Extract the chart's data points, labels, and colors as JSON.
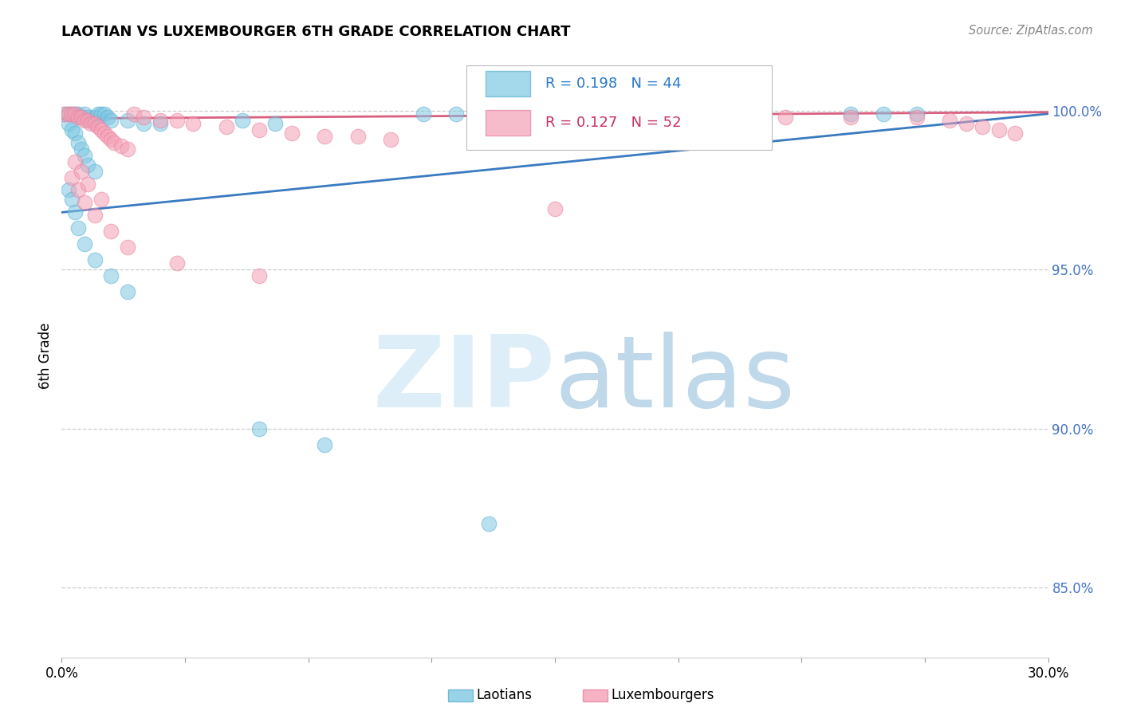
{
  "title": "LAOTIAN VS LUXEMBOURGER 6TH GRADE CORRELATION CHART",
  "source": "Source: ZipAtlas.com",
  "ylabel": "6th Grade",
  "ytick_labels": [
    "100.0%",
    "95.0%",
    "90.0%",
    "85.0%"
  ],
  "ytick_values": [
    1.0,
    0.95,
    0.9,
    0.85
  ],
  "xmin": 0.0,
  "xmax": 0.3,
  "ymin": 0.828,
  "ymax": 1.018,
  "legend_blue_r": "R = 0.198",
  "legend_blue_n": "N = 44",
  "legend_pink_r": "R = 0.127",
  "legend_pink_n": "N = 52",
  "blue_color": "#7ec8e3",
  "pink_color": "#f4a0b5",
  "blue_line_color": "#3a7abf",
  "pink_line_color": "#d95f7f",
  "watermark_color": "#ddeef8",
  "blue_scatter_edge": "#5aafd4",
  "pink_scatter_edge": "#e87fa0",
  "blue_points": [
    [
      0.001,
      0.999
    ],
    [
      0.002,
      0.999
    ],
    [
      0.003,
      0.999
    ],
    [
      0.004,
      0.999
    ],
    [
      0.005,
      0.999
    ],
    [
      0.006,
      0.998
    ],
    [
      0.007,
      0.999
    ],
    [
      0.008,
      0.998
    ],
    [
      0.009,
      0.997
    ],
    [
      0.01,
      0.998
    ],
    [
      0.011,
      0.999
    ],
    [
      0.012,
      0.999
    ],
    [
      0.013,
      0.999
    ],
    [
      0.014,
      0.998
    ],
    [
      0.015,
      0.997
    ],
    [
      0.02,
      0.997
    ],
    [
      0.025,
      0.996
    ],
    [
      0.03,
      0.996
    ],
    [
      0.055,
      0.997
    ],
    [
      0.065,
      0.996
    ],
    [
      0.11,
      0.999
    ],
    [
      0.12,
      0.999
    ],
    [
      0.24,
      0.999
    ],
    [
      0.25,
      0.999
    ],
    [
      0.26,
      0.999
    ],
    [
      0.002,
      0.996
    ],
    [
      0.003,
      0.994
    ],
    [
      0.004,
      0.993
    ],
    [
      0.005,
      0.99
    ],
    [
      0.006,
      0.988
    ],
    [
      0.007,
      0.986
    ],
    [
      0.008,
      0.983
    ],
    [
      0.01,
      0.981
    ],
    [
      0.002,
      0.975
    ],
    [
      0.003,
      0.972
    ],
    [
      0.004,
      0.968
    ],
    [
      0.005,
      0.963
    ],
    [
      0.007,
      0.958
    ],
    [
      0.01,
      0.953
    ],
    [
      0.015,
      0.948
    ],
    [
      0.02,
      0.943
    ],
    [
      0.06,
      0.9
    ],
    [
      0.08,
      0.895
    ],
    [
      0.13,
      0.87
    ]
  ],
  "pink_points": [
    [
      0.001,
      0.999
    ],
    [
      0.002,
      0.999
    ],
    [
      0.003,
      0.999
    ],
    [
      0.004,
      0.999
    ],
    [
      0.005,
      0.998
    ],
    [
      0.006,
      0.998
    ],
    [
      0.007,
      0.997
    ],
    [
      0.008,
      0.997
    ],
    [
      0.009,
      0.996
    ],
    [
      0.01,
      0.996
    ],
    [
      0.011,
      0.995
    ],
    [
      0.012,
      0.994
    ],
    [
      0.013,
      0.993
    ],
    [
      0.014,
      0.992
    ],
    [
      0.015,
      0.991
    ],
    [
      0.016,
      0.99
    ],
    [
      0.018,
      0.989
    ],
    [
      0.02,
      0.988
    ],
    [
      0.022,
      0.999
    ],
    [
      0.025,
      0.998
    ],
    [
      0.03,
      0.997
    ],
    [
      0.035,
      0.997
    ],
    [
      0.04,
      0.996
    ],
    [
      0.05,
      0.995
    ],
    [
      0.06,
      0.994
    ],
    [
      0.07,
      0.993
    ],
    [
      0.08,
      0.992
    ],
    [
      0.09,
      0.992
    ],
    [
      0.1,
      0.991
    ],
    [
      0.003,
      0.979
    ],
    [
      0.005,
      0.975
    ],
    [
      0.007,
      0.971
    ],
    [
      0.01,
      0.967
    ],
    [
      0.015,
      0.962
    ],
    [
      0.02,
      0.957
    ],
    [
      0.035,
      0.952
    ],
    [
      0.06,
      0.948
    ],
    [
      0.15,
      0.969
    ],
    [
      0.22,
      0.998
    ],
    [
      0.24,
      0.998
    ],
    [
      0.26,
      0.998
    ],
    [
      0.27,
      0.997
    ],
    [
      0.275,
      0.996
    ],
    [
      0.28,
      0.995
    ],
    [
      0.285,
      0.994
    ],
    [
      0.29,
      0.993
    ],
    [
      0.16,
      0.999
    ],
    [
      0.17,
      0.998
    ],
    [
      0.004,
      0.984
    ],
    [
      0.006,
      0.981
    ],
    [
      0.008,
      0.977
    ],
    [
      0.012,
      0.972
    ]
  ]
}
